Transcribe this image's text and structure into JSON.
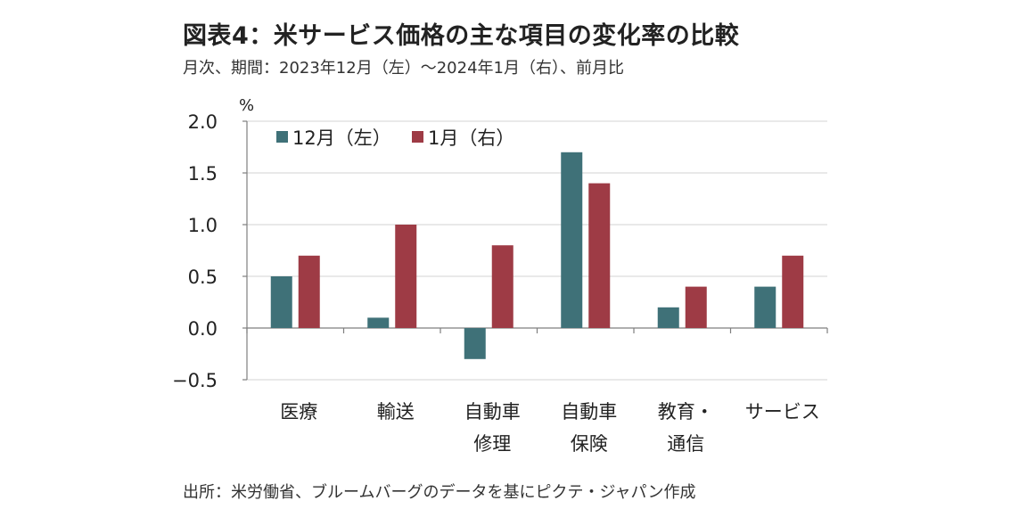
{
  "header": {
    "title": "図表4：米サービス価格の主な項目の変化率の比較",
    "subtitle": "月次、期間：2023年12月（左）～2024年1月（右）、前月比"
  },
  "footer": {
    "source": "出所：米労働省、ブルームバーグのデータを基にピクテ・ジャパン作成"
  },
  "chart_data": {
    "type": "bar",
    "unit_label": "%",
    "categories": [
      [
        "医療"
      ],
      [
        "輸送"
      ],
      [
        "自動車",
        "修理"
      ],
      [
        "自動車",
        "保険"
      ],
      [
        "教育・",
        "通信"
      ],
      [
        "サービス"
      ]
    ],
    "series": [
      {
        "name": "12月（左）",
        "color": "#3f7178",
        "values": [
          0.5,
          0.1,
          -0.3,
          1.7,
          0.2,
          0.4
        ]
      },
      {
        "name": "1月（右）",
        "color": "#9e3b45",
        "values": [
          0.7,
          1.0,
          0.8,
          1.4,
          0.4,
          0.7
        ]
      }
    ],
    "yticks": [
      "2.0",
      "1.5",
      "1.0",
      "0.5",
      "0.0",
      "−0.5"
    ],
    "ylim": [
      -0.5,
      2.0
    ],
    "grid": true,
    "legend_position": "top-left"
  }
}
